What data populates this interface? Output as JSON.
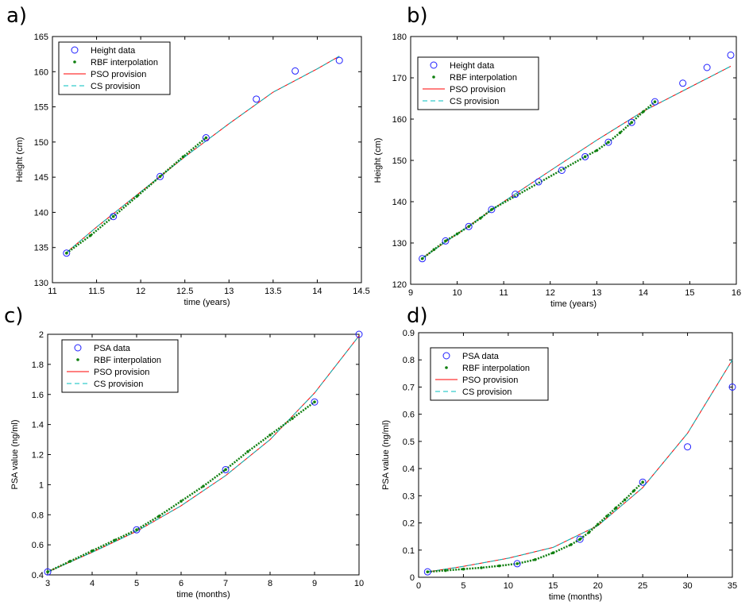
{
  "chart_data": [
    {
      "panel": "a)",
      "type": "line",
      "xlabel": "time (years)",
      "ylabel": "Height (cm)",
      "xlim": [
        11,
        14.5
      ],
      "ylim": [
        130,
        165
      ],
      "xticks": [
        11,
        11.5,
        12,
        12.5,
        13,
        13.5,
        14,
        14.5
      ],
      "yticks": [
        130,
        135,
        140,
        145,
        150,
        155,
        160,
        165
      ],
      "legend_position": "top-left",
      "series": [
        {
          "name": "Height data",
          "kind": "circles",
          "color": "#1f1fff",
          "x": [
            11.16,
            11.69,
            12.22,
            12.74,
            13.31,
            13.75,
            14.25
          ],
          "y": [
            134.2,
            139.4,
            145.1,
            150.6,
            156.1,
            160.1,
            161.6
          ]
        },
        {
          "name": "RBF interpolation",
          "kind": "dots",
          "color": "#0f7f0f",
          "x": [
            11.16,
            11.43,
            11.69,
            11.96,
            12.22,
            12.48,
            12.74
          ],
          "y": [
            134.2,
            136.7,
            139.4,
            142.3,
            145.1,
            147.9,
            150.6
          ]
        },
        {
          "name": "PSO provision",
          "kind": "solid",
          "color": "#ff0000",
          "x": [
            11.16,
            11.5,
            12.0,
            12.5,
            13.0,
            13.5,
            14.0,
            14.25
          ],
          "y": [
            134.3,
            137.9,
            142.9,
            147.9,
            152.6,
            157.1,
            160.4,
            162.2
          ]
        },
        {
          "name": "CS provision",
          "kind": "dashed",
          "color": "#00bfbf",
          "x": [
            11.16,
            11.5,
            12.0,
            12.5,
            13.0,
            13.5,
            14.0,
            14.25
          ],
          "y": [
            134.3,
            137.9,
            142.9,
            147.9,
            152.6,
            157.1,
            160.4,
            162.2
          ]
        }
      ]
    },
    {
      "panel": "b)",
      "type": "line",
      "xlabel": "time (years)",
      "ylabel": "Height (cm)",
      "xlim": [
        9,
        16
      ],
      "ylim": [
        120,
        180
      ],
      "xticks": [
        9,
        10,
        11,
        12,
        13,
        14,
        15,
        16
      ],
      "yticks": [
        120,
        130,
        140,
        150,
        160,
        170,
        180
      ],
      "legend_position": "top-left",
      "series": [
        {
          "name": "Height data",
          "kind": "circles",
          "color": "#1f1fff",
          "x": [
            9.25,
            9.75,
            10.25,
            10.74,
            11.25,
            11.75,
            12.25,
            12.75,
            13.25,
            13.75,
            14.25,
            14.85,
            15.37,
            15.88
          ],
          "y": [
            126.2,
            130.5,
            134.0,
            138.1,
            141.8,
            144.8,
            147.6,
            150.9,
            154.4,
            159.2,
            164.2,
            168.7,
            172.5,
            175.5
          ]
        },
        {
          "name": "RBF interpolation",
          "kind": "dots",
          "color": "#0f7f0f",
          "x": [
            9.25,
            9.5,
            9.75,
            10.0,
            10.25,
            10.5,
            10.74,
            12.75,
            13.0,
            13.25,
            13.5,
            13.75,
            14.0,
            14.25
          ],
          "y": [
            126.2,
            128.4,
            130.5,
            132.2,
            134.0,
            136.0,
            138.1,
            150.9,
            152.4,
            154.4,
            156.7,
            159.2,
            161.8,
            164.2
          ]
        },
        {
          "name": "PSO provision",
          "kind": "solid",
          "color": "#ff0000",
          "x": [
            9.25,
            10,
            11,
            12,
            13,
            14,
            15,
            15.88
          ],
          "y": [
            126.3,
            132.2,
            140.0,
            147.5,
            154.9,
            161.9,
            167.7,
            172.8
          ]
        },
        {
          "name": "CS provision",
          "kind": "dashed",
          "color": "#00bfbf",
          "x": [
            9.25,
            10,
            11,
            12,
            13,
            14,
            15,
            15.88
          ],
          "y": [
            126.3,
            132.2,
            140.0,
            147.5,
            154.9,
            161.9,
            167.7,
            172.8
          ]
        }
      ]
    },
    {
      "panel": "c)",
      "type": "line",
      "xlabel": "time (months)",
      "ylabel": "PSA value (ng/ml)",
      "xlim": [
        3,
        10
      ],
      "ylim": [
        0.4,
        2
      ],
      "xticks": [
        3,
        4,
        5,
        6,
        7,
        8,
        9,
        10
      ],
      "yticks": [
        0.4,
        0.6,
        0.8,
        1,
        1.2,
        1.4,
        1.6,
        1.8,
        2
      ],
      "legend_position": "top-left",
      "series": [
        {
          "name": "PSA data",
          "kind": "circles",
          "color": "#1f1fff",
          "x": [
            3,
            5,
            7,
            9,
            10
          ],
          "y": [
            0.42,
            0.7,
            1.1,
            1.55,
            2.0
          ]
        },
        {
          "name": "RBF interpolation",
          "kind": "dots",
          "color": "#0f7f0f",
          "x": [
            3,
            3.5,
            4,
            4.5,
            5,
            5.5,
            6,
            6.5,
            7,
            7.5,
            8,
            8.5,
            9
          ],
          "y": [
            0.42,
            0.49,
            0.56,
            0.63,
            0.7,
            0.79,
            0.89,
            0.99,
            1.1,
            1.22,
            1.33,
            1.44,
            1.55
          ]
        },
        {
          "name": "PSO provision",
          "kind": "solid",
          "color": "#ff0000",
          "x": [
            3,
            4,
            5,
            6,
            7,
            8,
            9,
            10
          ],
          "y": [
            0.42,
            0.55,
            0.69,
            0.86,
            1.06,
            1.3,
            1.61,
            1.99
          ]
        },
        {
          "name": "CS provision",
          "kind": "dashed",
          "color": "#00bfbf",
          "x": [
            3,
            4,
            5,
            6,
            7,
            8,
            9,
            10
          ],
          "y": [
            0.42,
            0.55,
            0.69,
            0.86,
            1.06,
            1.3,
            1.61,
            1.99
          ]
        }
      ]
    },
    {
      "panel": "d)",
      "type": "line",
      "xlabel": "time (months)",
      "ylabel": "PSA value (ng/ml)",
      "xlim": [
        0,
        35
      ],
      "ylim": [
        0,
        0.9
      ],
      "xticks": [
        0,
        5,
        10,
        15,
        20,
        25,
        30,
        35
      ],
      "yticks": [
        0,
        0.1,
        0.2,
        0.3,
        0.4,
        0.5,
        0.6,
        0.7,
        0.8,
        0.9
      ],
      "legend_position": "top-left",
      "series": [
        {
          "name": "PSA data",
          "kind": "circles",
          "color": "#1f1fff",
          "x": [
            1,
            11,
            18,
            25,
            30,
            35
          ],
          "y": [
            0.02,
            0.05,
            0.14,
            0.35,
            0.48,
            0.7
          ]
        },
        {
          "name": "RBF interpolation",
          "kind": "dots",
          "color": "#0f7f0f",
          "x": [
            1,
            3,
            5,
            7,
            9,
            11,
            13,
            15,
            17,
            18,
            19,
            20,
            21,
            22,
            23,
            24,
            25
          ],
          "y": [
            0.02,
            0.025,
            0.03,
            0.035,
            0.042,
            0.05,
            0.065,
            0.09,
            0.12,
            0.14,
            0.165,
            0.195,
            0.225,
            0.255,
            0.285,
            0.318,
            0.35
          ]
        },
        {
          "name": "PSO provision",
          "kind": "solid",
          "color": "#ff0000",
          "x": [
            1,
            5,
            10,
            15,
            20,
            25,
            30,
            35
          ],
          "y": [
            0.02,
            0.04,
            0.07,
            0.11,
            0.19,
            0.33,
            0.53,
            0.8
          ]
        },
        {
          "name": "CS provision",
          "kind": "dashed",
          "color": "#00bfbf",
          "x": [
            1,
            5,
            10,
            15,
            20,
            25,
            30,
            35
          ],
          "y": [
            0.02,
            0.04,
            0.07,
            0.11,
            0.19,
            0.33,
            0.53,
            0.8
          ]
        }
      ]
    }
  ]
}
